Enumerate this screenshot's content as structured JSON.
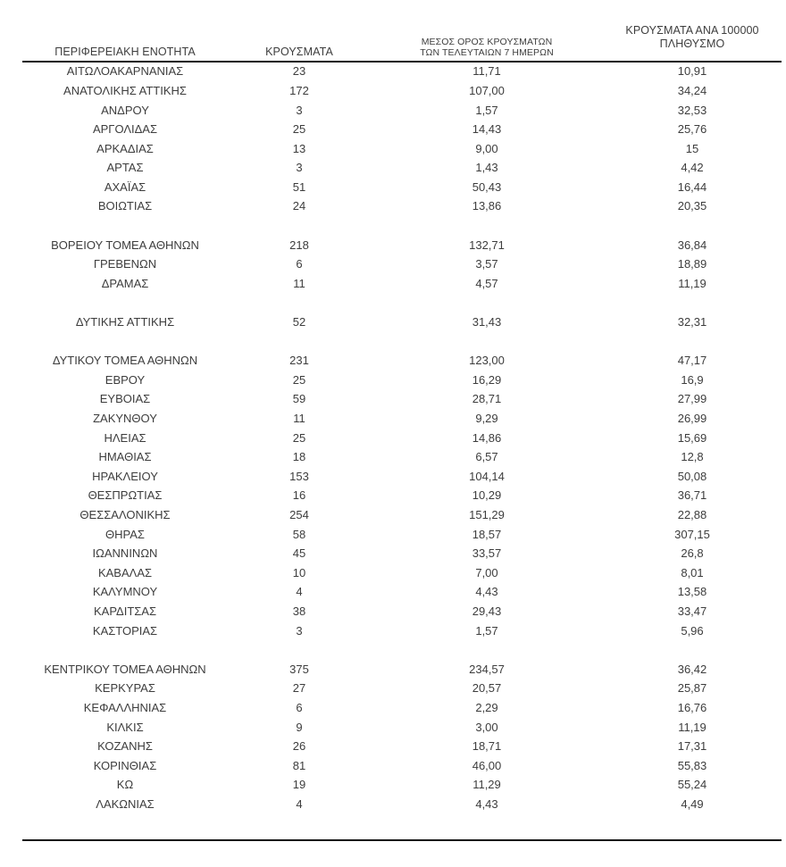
{
  "table": {
    "headers": {
      "region": "ΠΕΡΙΦΕΡΕΙΑΚΗ ΕΝΟΤΗΤΑ",
      "cases": "ΚΡΟΥΣΜΑΤΑ",
      "avg7_line1": "ΜΕΣΟΣ ΟΡΟΣ ΚΡΟΥΣΜΑΤΩΝ",
      "avg7_line2": "ΤΩΝ ΤΕΛΕΥΤΑΙΩΝ 7 ΗΜΕΡΩΝ",
      "per100k_line1": "ΚΡΟΥΣΜΑΤΑ ΑΝΑ 100000",
      "per100k_line2": "ΠΛΗΘΥΣΜΟ"
    },
    "rows": [
      {
        "region": "ΑΙΤΩΛΟΑΚΑΡΝΑΝΙΑΣ",
        "cases": "23",
        "avg7": "11,71",
        "per100k": "10,91"
      },
      {
        "region": "ΑΝΑΤΟΛΙΚΗΣ ΑΤΤΙΚΗΣ",
        "cases": "172",
        "avg7": "107,00",
        "per100k": "34,24"
      },
      {
        "region": "ΑΝΔΡΟΥ",
        "cases": "3",
        "avg7": "1,57",
        "per100k": "32,53"
      },
      {
        "region": "ΑΡΓΟΛΙΔΑΣ",
        "cases": "25",
        "avg7": "14,43",
        "per100k": "25,76"
      },
      {
        "region": "ΑΡΚΑΔΙΑΣ",
        "cases": "13",
        "avg7": "9,00",
        "per100k": "15"
      },
      {
        "region": "ΑΡΤΑΣ",
        "cases": "3",
        "avg7": "1,43",
        "per100k": "4,42"
      },
      {
        "region": "ΑΧΑΪΑΣ",
        "cases": "51",
        "avg7": "50,43",
        "per100k": "16,44"
      },
      {
        "region": "ΒΟΙΩΤΙΑΣ",
        "cases": "24",
        "avg7": "13,86",
        "per100k": "20,35"
      },
      {
        "spacer": true
      },
      {
        "region": "ΒΟΡΕΙΟΥ ΤΟΜΕΑ ΑΘΗΝΩΝ",
        "cases": "218",
        "avg7": "132,71",
        "per100k": "36,84"
      },
      {
        "region": "ΓΡΕΒΕΝΩΝ",
        "cases": "6",
        "avg7": "3,57",
        "per100k": "18,89"
      },
      {
        "region": "ΔΡΑΜΑΣ",
        "cases": "11",
        "avg7": "4,57",
        "per100k": "11,19"
      },
      {
        "spacer": true
      },
      {
        "region": "ΔΥΤΙΚΗΣ ΑΤΤΙΚΗΣ",
        "cases": "52",
        "avg7": "31,43",
        "per100k": "32,31"
      },
      {
        "spacer": true
      },
      {
        "region": "ΔΥΤΙΚΟΥ ΤΟΜΕΑ ΑΘΗΝΩΝ",
        "cases": "231",
        "avg7": "123,00",
        "per100k": "47,17"
      },
      {
        "region": "ΕΒΡΟΥ",
        "cases": "25",
        "avg7": "16,29",
        "per100k": "16,9"
      },
      {
        "region": "ΕΥΒΟΙΑΣ",
        "cases": "59",
        "avg7": "28,71",
        "per100k": "27,99"
      },
      {
        "region": "ΖΑΚΥΝΘΟΥ",
        "cases": "11",
        "avg7": "9,29",
        "per100k": "26,99"
      },
      {
        "region": "ΗΛΕΙΑΣ",
        "cases": "25",
        "avg7": "14,86",
        "per100k": "15,69"
      },
      {
        "region": "ΗΜΑΘΙΑΣ",
        "cases": "18",
        "avg7": "6,57",
        "per100k": "12,8"
      },
      {
        "region": "ΗΡΑΚΛΕΙΟΥ",
        "cases": "153",
        "avg7": "104,14",
        "per100k": "50,08"
      },
      {
        "region": "ΘΕΣΠΡΩΤΙΑΣ",
        "cases": "16",
        "avg7": "10,29",
        "per100k": "36,71"
      },
      {
        "region": "ΘΕΣΣΑΛΟΝΙΚΗΣ",
        "cases": "254",
        "avg7": "151,29",
        "per100k": "22,88"
      },
      {
        "region": "ΘΗΡΑΣ",
        "cases": "58",
        "avg7": "18,57",
        "per100k": "307,15"
      },
      {
        "region": "ΙΩΑΝΝΙΝΩΝ",
        "cases": "45",
        "avg7": "33,57",
        "per100k": "26,8"
      },
      {
        "region": "ΚΑΒΑΛΑΣ",
        "cases": "10",
        "avg7": "7,00",
        "per100k": "8,01"
      },
      {
        "region": "ΚΑΛΥΜΝΟΥ",
        "cases": "4",
        "avg7": "4,43",
        "per100k": "13,58"
      },
      {
        "region": "ΚΑΡΔΙΤΣΑΣ",
        "cases": "38",
        "avg7": "29,43",
        "per100k": "33,47"
      },
      {
        "region": "ΚΑΣΤΟΡΙΑΣ",
        "cases": "3",
        "avg7": "1,57",
        "per100k": "5,96"
      },
      {
        "spacer": true
      },
      {
        "region": "ΚΕΝΤΡΙΚΟΥ ΤΟΜΕΑ ΑΘΗΝΩΝ",
        "cases": "375",
        "avg7": "234,57",
        "per100k": "36,42"
      },
      {
        "region": "ΚΕΡΚΥΡΑΣ",
        "cases": "27",
        "avg7": "20,57",
        "per100k": "25,87"
      },
      {
        "region": "ΚΕΦΑΛΛΗΝΙΑΣ",
        "cases": "6",
        "avg7": "2,29",
        "per100k": "16,76"
      },
      {
        "region": "ΚΙΛΚΙΣ",
        "cases": "9",
        "avg7": "3,00",
        "per100k": "11,19"
      },
      {
        "region": "ΚΟΖΑΝΗΣ",
        "cases": "26",
        "avg7": "18,71",
        "per100k": "17,31"
      },
      {
        "region": "ΚΟΡΙΝΘΙΑΣ",
        "cases": "81",
        "avg7": "46,00",
        "per100k": "55,83"
      },
      {
        "region": "ΚΩ",
        "cases": "19",
        "avg7": "11,29",
        "per100k": "55,24"
      },
      {
        "region": "ΛΑΚΩΝΙΑΣ",
        "cases": "4",
        "avg7": "4,43",
        "per100k": "4,49"
      }
    ]
  }
}
